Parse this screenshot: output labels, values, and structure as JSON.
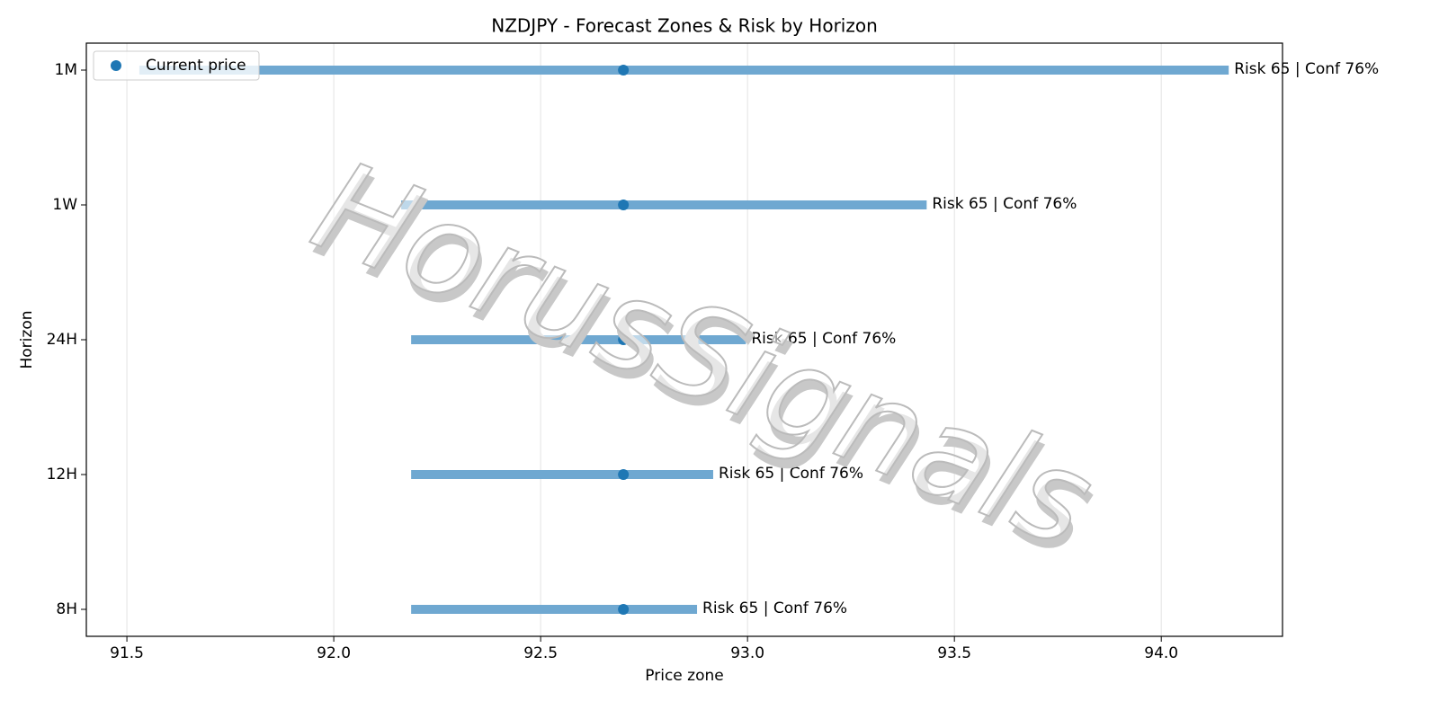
{
  "chart_data": {
    "type": "range",
    "title": "NZDJPY - Forecast Zones & Risk by Horizon",
    "xlabel": "Price zone",
    "ylabel": "Horizon",
    "watermark": "HorusSignals",
    "categories": [
      "1M",
      "1W",
      "24H",
      "12H",
      "8H"
    ],
    "low": [
      91.53,
      92.163,
      92.187,
      92.187,
      92.187
    ],
    "high": [
      94.163,
      93.433,
      92.996,
      92.917,
      92.878
    ],
    "bar_color": "#6fa8d1",
    "current": {
      "name": "Current price",
      "color": "#1f77b4",
      "values": [
        92.7,
        92.7,
        92.7,
        92.7,
        92.7
      ]
    },
    "annotations": [
      "Risk 65 | Conf 76%",
      "Risk 65 | Conf 76%",
      "Risk 65 | Conf 76%",
      "Risk 65 | Conf 76%",
      "Risk 65 | Conf 76%"
    ],
    "xlim": [
      91.402,
      94.293
    ],
    "xticks": [
      91.5,
      {
        "value": 92,
        "label": "92.0"
      },
      92.5,
      {
        "value": 93,
        "label": "93.0"
      },
      93.5,
      {
        "value": 94,
        "label": "94.0"
      }
    ],
    "grid": true,
    "legend": "upper left"
  }
}
